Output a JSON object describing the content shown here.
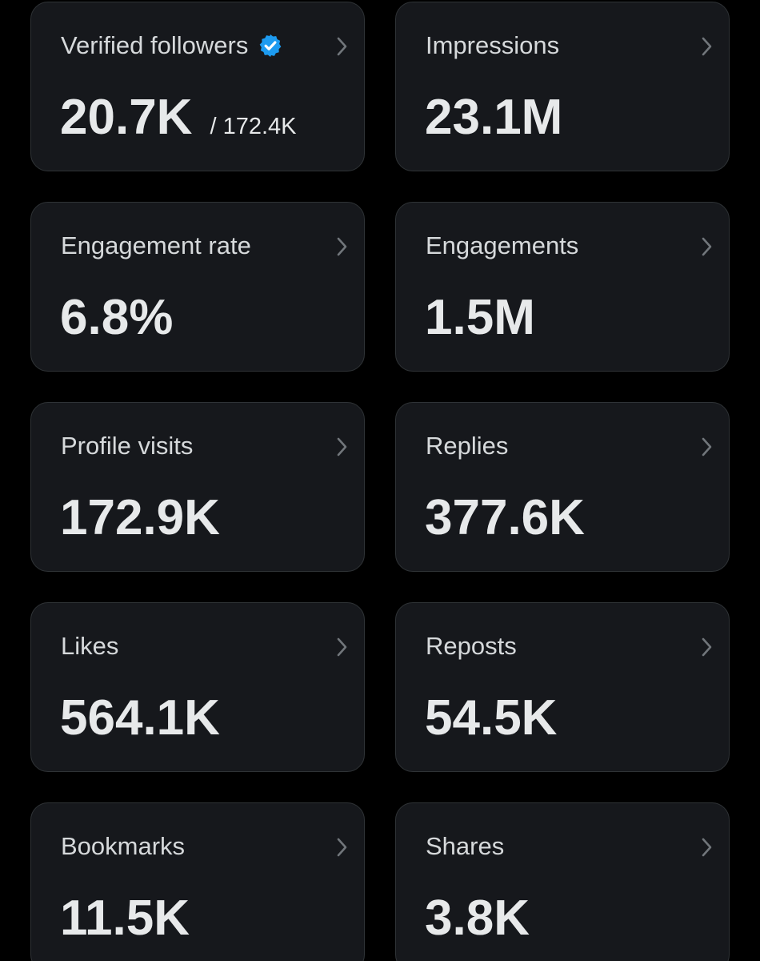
{
  "cards": [
    {
      "label": "Verified followers",
      "value": "20.7K",
      "secondary": "/ 172.4K",
      "verified": true
    },
    {
      "label": "Impressions",
      "value": "23.1M"
    },
    {
      "label": "Engagement rate",
      "value": "6.8%"
    },
    {
      "label": "Engagements",
      "value": "1.5M"
    },
    {
      "label": "Profile visits",
      "value": "172.9K"
    },
    {
      "label": "Replies",
      "value": "377.6K"
    },
    {
      "label": "Likes",
      "value": "564.1K"
    },
    {
      "label": "Reposts",
      "value": "54.5K"
    },
    {
      "label": "Bookmarks",
      "value": "11.5K"
    },
    {
      "label": "Shares",
      "value": "3.8K"
    }
  ]
}
